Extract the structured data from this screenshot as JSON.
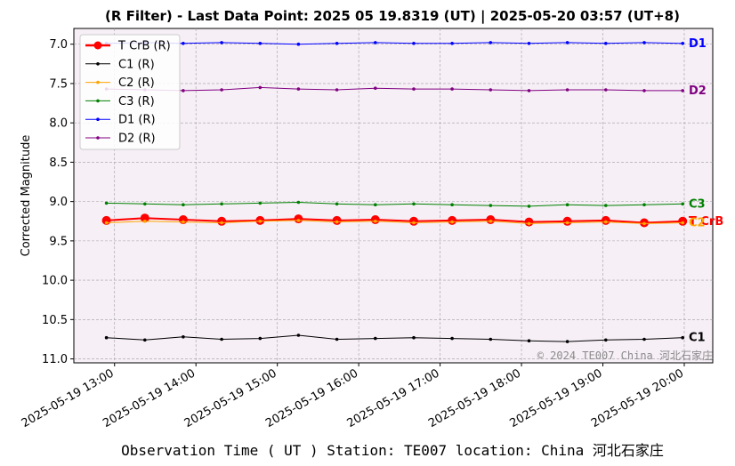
{
  "chart_data": {
    "type": "line",
    "title": "(R Filter) - Last Data Point: 2025 05 19.8319 (UT) | 2025-05-20 03:57 (UT+8)",
    "xlabel": "Observation Time ( UT )  Station: TE007 location: China 河北石家庄",
    "ylabel": "Corrected Magnitude",
    "y_inverted": true,
    "ylim": [
      11.05,
      6.8
    ],
    "xlim_hours": [
      12.5,
      20.35
    ],
    "x_ticks": [
      {
        "label": "2025-05-19 13:00",
        "hour": 13
      },
      {
        "label": "2025-05-19 14:00",
        "hour": 14
      },
      {
        "label": "2025-05-19 15:00",
        "hour": 15
      },
      {
        "label": "2025-05-19 16:00",
        "hour": 16
      },
      {
        "label": "2025-05-19 17:00",
        "hour": 17
      },
      {
        "label": "2025-05-19 18:00",
        "hour": 18
      },
      {
        "label": "2025-05-19 19:00",
        "hour": 19
      },
      {
        "label": "2025-05-19 20:00",
        "hour": 20
      }
    ],
    "y_ticks": [
      "7.0",
      "7.5",
      "8.0",
      "8.5",
      "9.0",
      "9.5",
      "10.0",
      "10.5",
      "11.0"
    ],
    "grid": true,
    "legend_position": "top-left",
    "background_color": "#f6eff6",
    "x_start_hour": 12.9,
    "x_end_hour": 19.98,
    "series": [
      {
        "name": "T CrB (R)",
        "color": "#ff0000",
        "marker_color": "#ff0000",
        "line_color": "#ff0000",
        "end_label": "T CrB",
        "end_label_color": "#ff0000",
        "values": [
          9.24,
          9.21,
          9.23,
          9.25,
          9.24,
          9.22,
          9.24,
          9.23,
          9.25,
          9.24,
          9.23,
          9.26,
          9.25,
          9.24,
          9.27,
          9.25
        ]
      },
      {
        "name": "C1 (R)",
        "color": "#000000",
        "end_label": "C1",
        "end_label_color": "#000000",
        "values": [
          10.73,
          10.76,
          10.72,
          10.75,
          10.74,
          10.7,
          10.75,
          10.74,
          10.73,
          10.74,
          10.75,
          10.77,
          10.78,
          10.76,
          10.75,
          10.73
        ]
      },
      {
        "name": "C2 (R)",
        "color": "#ffa500",
        "end_label": "C2",
        "end_label_color": "#ffa500",
        "values": [
          9.27,
          9.25,
          9.26,
          9.27,
          9.25,
          9.24,
          9.26,
          9.25,
          9.27,
          9.26,
          9.25,
          9.28,
          9.27,
          9.26,
          9.28,
          9.27
        ]
      },
      {
        "name": "C3 (R)",
        "color": "#008000",
        "end_label": "C3",
        "end_label_color": "#008000",
        "values": [
          9.02,
          9.03,
          9.04,
          9.03,
          9.02,
          9.01,
          9.03,
          9.04,
          9.03,
          9.04,
          9.05,
          9.06,
          9.04,
          9.05,
          9.04,
          9.03
        ]
      },
      {
        "name": "D1 (R)",
        "color": "#0000ff",
        "end_label": "D1",
        "end_label_color": "#0000ff",
        "values": [
          6.99,
          6.98,
          6.99,
          6.98,
          6.99,
          7.0,
          6.99,
          6.98,
          6.99,
          6.99,
          6.98,
          6.99,
          6.98,
          6.99,
          6.98,
          6.99
        ]
      },
      {
        "name": "D2 (R)",
        "color": "#800080",
        "end_label": "D2",
        "end_label_color": "#800080",
        "values": [
          7.57,
          7.58,
          7.59,
          7.58,
          7.55,
          7.57,
          7.58,
          7.56,
          7.57,
          7.57,
          7.58,
          7.59,
          7.58,
          7.58,
          7.59,
          7.59
        ]
      }
    ],
    "watermark": "© 2024 TE007 China 河北石家庄"
  }
}
